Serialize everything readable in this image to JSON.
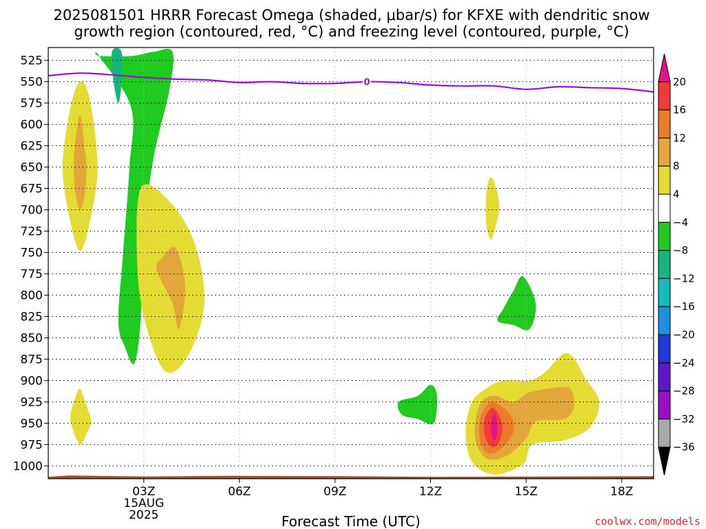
{
  "title": {
    "line1": "2025081501 HRRR Forecast Omega (shaded, μbar/s) for KFXE with dendritic snow",
    "line2": "growth region (contoured, red, °C) and freezing level (contoured, purple, °C)"
  },
  "credit": "coolwx.com/models",
  "chart_data": {
    "type": "heatmap",
    "title": "2025081501 HRRR Forecast Omega (shaded, μbar/s) for KFXE with dendritic snow growth region (contoured, red, °C) and freezing level (contoured, purple, °C)",
    "xlabel": "Forecast Time (UTC)",
    "ylabel": "",
    "xlim_hours": [
      0,
      19
    ],
    "ylim_hpa": [
      1015,
      510
    ],
    "y_scale": "reversed pressure",
    "grid": true,
    "x_ticks": [
      {
        "hour": 3,
        "label": "03Z",
        "sub": [
          "15AUG",
          "2025"
        ]
      },
      {
        "hour": 6,
        "label": "06Z"
      },
      {
        "hour": 9,
        "label": "09Z"
      },
      {
        "hour": 12,
        "label": "12Z"
      },
      {
        "hour": 15,
        "label": "15Z"
      },
      {
        "hour": 18,
        "label": "18Z"
      }
    ],
    "y_ticks": [
      525,
      550,
      575,
      600,
      625,
      650,
      675,
      700,
      725,
      750,
      775,
      800,
      825,
      850,
      875,
      900,
      925,
      950,
      975,
      1000
    ],
    "colorbar": {
      "ticks": [
        "20",
        "16",
        "12",
        "8",
        "4",
        "−4",
        "−8",
        "−12",
        "−16",
        "−20",
        "−24",
        "−28",
        "−32",
        "−36"
      ],
      "bins": [
        {
          "range": "> 20",
          "color": "#e0138a"
        },
        {
          "range": "16 to 20",
          "color": "#f23a3a"
        },
        {
          "range": "12 to 16",
          "color": "#ec7c2c"
        },
        {
          "range": "8 to 12",
          "color": "#e2a63a"
        },
        {
          "range": "4 to 8",
          "color": "#e5dc33"
        },
        {
          "range": "-4 to 4",
          "color": "#ffffff"
        },
        {
          "range": "-8 to -4",
          "color": "#1ecb1e"
        },
        {
          "range": "-12 to -8",
          "color": "#15b67e"
        },
        {
          "range": "-16 to -12",
          "color": "#16bcbc"
        },
        {
          "range": "-20 to -16",
          "color": "#1d8fe4"
        },
        {
          "range": "-24 to -20",
          "color": "#1f38dc"
        },
        {
          "range": "-28 to -24",
          "color": "#5a18c8"
        },
        {
          "range": "-32 to -28",
          "color": "#9a0fc0"
        },
        {
          "range": "-36 to -32",
          "color": "#a9a9a9"
        },
        {
          "range": "< -36",
          "color": "#000000"
        }
      ]
    },
    "freezing_level": {
      "label": "0",
      "label_hour": 10,
      "color": "#9a10d0",
      "points": [
        [
          0,
          543
        ],
        [
          1.0,
          540
        ],
        [
          2.0,
          542
        ],
        [
          3.0,
          545
        ],
        [
          4.0,
          547
        ],
        [
          5.0,
          548
        ],
        [
          6.0,
          551
        ],
        [
          7.0,
          550
        ],
        [
          8.0,
          552
        ],
        [
          9.0,
          552
        ],
        [
          10.0,
          550
        ],
        [
          11.0,
          551
        ],
        [
          12.0,
          554
        ],
        [
          13.0,
          555
        ],
        [
          14.0,
          555
        ],
        [
          15.0,
          559
        ],
        [
          16.0,
          556
        ],
        [
          17.0,
          557
        ],
        [
          18.0,
          558
        ],
        [
          19.0,
          562
        ]
      ]
    },
    "omega_regions": [
      {
        "name": "green band",
        "bin": "-8 to -4",
        "points": [
          [
            1.6,
            520
          ],
          [
            2.6,
            520
          ],
          [
            3.3,
            515
          ],
          [
            3.9,
            515
          ],
          [
            3.8,
            560
          ],
          [
            3.3,
            640
          ],
          [
            3.0,
            730
          ],
          [
            2.9,
            830
          ],
          [
            2.7,
            880
          ],
          [
            2.4,
            860
          ],
          [
            2.2,
            830
          ],
          [
            2.35,
            750
          ],
          [
            2.55,
            650
          ],
          [
            2.6,
            580
          ],
          [
            1.6,
            520
          ]
        ]
      },
      {
        "name": "cyan core",
        "bin": "-12 to -8",
        "points": [
          [
            2.3,
            515
          ],
          [
            2.3,
            550
          ],
          [
            2.2,
            575
          ],
          [
            2.05,
            550
          ],
          [
            2.0,
            515
          ]
        ]
      },
      {
        "name": "yellow left upper",
        "bin": "4 to 8",
        "points": [
          [
            1.0,
            550
          ],
          [
            1.3,
            570
          ],
          [
            1.55,
            650
          ],
          [
            1.3,
            715
          ],
          [
            1.0,
            748
          ],
          [
            0.7,
            715
          ],
          [
            0.45,
            650
          ],
          [
            0.7,
            580
          ]
        ]
      },
      {
        "name": "orange left upper",
        "bin": "8 to 12",
        "points": [
          [
            1.0,
            590
          ],
          [
            1.15,
            630
          ],
          [
            1.2,
            650
          ],
          [
            1.15,
            680
          ],
          [
            1.0,
            700
          ],
          [
            0.85,
            680
          ],
          [
            0.8,
            650
          ],
          [
            0.85,
            620
          ]
        ]
      },
      {
        "name": "yellow mid",
        "bin": "4 to 8",
        "points": [
          [
            2.9,
            675
          ],
          [
            3.8,
            690
          ],
          [
            4.6,
            740
          ],
          [
            4.9,
            810
          ],
          [
            4.4,
            870
          ],
          [
            3.7,
            890
          ],
          [
            3.1,
            840
          ],
          [
            2.8,
            770
          ]
        ]
      },
      {
        "name": "orange mid",
        "bin": "8 to 12",
        "points": [
          [
            4.0,
            745
          ],
          [
            4.3,
            790
          ],
          [
            4.1,
            840
          ],
          [
            3.9,
            810
          ],
          [
            3.4,
            770
          ],
          [
            3.6,
            755
          ]
        ]
      },
      {
        "name": "yellow left lower",
        "bin": "4 to 8",
        "points": [
          [
            1.0,
            910
          ],
          [
            1.25,
            935
          ],
          [
            1.35,
            948
          ],
          [
            1.2,
            962
          ],
          [
            1.0,
            975
          ],
          [
            0.75,
            955
          ],
          [
            0.7,
            940
          ],
          [
            0.85,
            920
          ]
        ]
      },
      {
        "name": "yellow small",
        "bin": "4 to 8",
        "points": [
          [
            13.9,
            662
          ],
          [
            14.1,
            680
          ],
          [
            14.15,
            700
          ],
          [
            14.05,
            718
          ],
          [
            13.9,
            735
          ],
          [
            13.75,
            718
          ],
          [
            13.75,
            680
          ]
        ]
      },
      {
        "name": "green right upper",
        "bin": "-8 to -4",
        "points": [
          [
            14.9,
            778
          ],
          [
            15.3,
            810
          ],
          [
            15.1,
            840
          ],
          [
            14.6,
            835
          ],
          [
            14.1,
            830
          ],
          [
            14.3,
            815
          ],
          [
            14.6,
            795
          ]
        ]
      },
      {
        "name": "green 12Z",
        "bin": "-8 to -4",
        "points": [
          [
            11.0,
            925
          ],
          [
            11.6,
            918
          ],
          [
            12.0,
            905
          ],
          [
            12.2,
            918
          ],
          [
            12.1,
            950
          ],
          [
            11.6,
            945
          ],
          [
            11.1,
            940
          ]
        ]
      },
      {
        "name": "yellow lower right",
        "bin": "4 to 8",
        "points": [
          [
            13.8,
            908
          ],
          [
            14.3,
            900
          ],
          [
            15.1,
            900
          ],
          [
            15.6,
            890
          ],
          [
            16.3,
            868
          ],
          [
            16.9,
            900
          ],
          [
            17.3,
            925
          ],
          [
            17.0,
            955
          ],
          [
            16.2,
            970
          ],
          [
            15.2,
            975
          ],
          [
            14.9,
            998
          ],
          [
            14.0,
            1010
          ],
          [
            13.3,
            995
          ],
          [
            13.1,
            960
          ],
          [
            13.3,
            925
          ]
        ]
      },
      {
        "name": "orange lower right",
        "bin": "8 to 12",
        "points": [
          [
            14.6,
            925
          ],
          [
            15.1,
            914
          ],
          [
            16.0,
            908
          ],
          [
            16.4,
            910
          ],
          [
            16.5,
            930
          ],
          [
            16.2,
            945
          ],
          [
            15.3,
            948
          ],
          [
            15.0,
            968
          ],
          [
            14.4,
            988
          ],
          [
            13.8,
            992
          ],
          [
            13.45,
            975
          ],
          [
            13.4,
            950
          ],
          [
            13.6,
            925
          ],
          [
            14.0,
            918
          ]
        ]
      },
      {
        "name": "orange lower right core",
        "bin": "12 to 16",
        "points": [
          [
            14.0,
            925
          ],
          [
            14.5,
            940
          ],
          [
            14.6,
            960
          ],
          [
            14.2,
            980
          ],
          [
            13.8,
            985
          ],
          [
            13.55,
            970
          ],
          [
            13.55,
            945
          ],
          [
            13.75,
            930
          ]
        ]
      },
      {
        "name": "red core",
        "bin": "16 to 20",
        "points": [
          [
            13.95,
            932
          ],
          [
            14.2,
            945
          ],
          [
            14.25,
            960
          ],
          [
            14.1,
            975
          ],
          [
            13.9,
            977
          ],
          [
            13.7,
            965
          ],
          [
            13.7,
            945
          ]
        ]
      },
      {
        "name": "magenta peak",
        "bin": "> 20",
        "points": [
          [
            14.0,
            938
          ],
          [
            14.1,
            952
          ],
          [
            14.05,
            968
          ],
          [
            13.95,
            968
          ],
          [
            13.9,
            952
          ]
        ]
      }
    ],
    "terrain": {
      "color": "#a4502a",
      "top_hpa": 1012
    }
  }
}
